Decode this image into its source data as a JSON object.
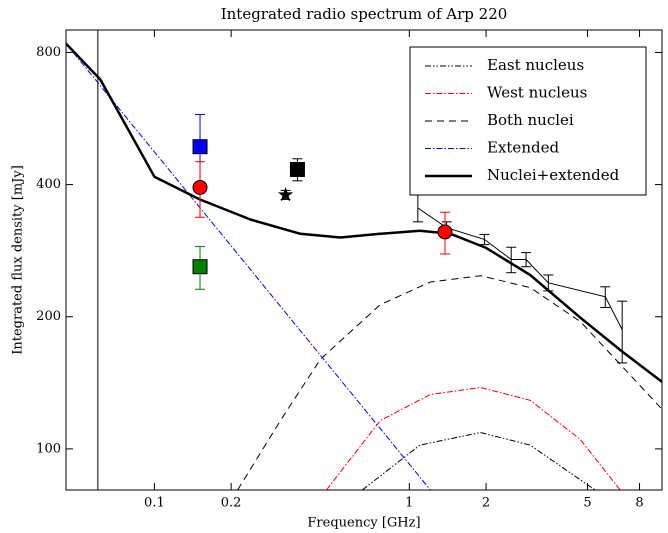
{
  "chart_data": {
    "type": "line",
    "title": "Integrated radio spectrum of Arp 220",
    "xlabel": "Frequency [GHz]",
    "ylabel": "Integrated flux density [mJy]",
    "xlog": true,
    "ylog": true,
    "xlim": [
      0.045,
      9.8
    ],
    "ylim": [
      80.6,
      900
    ],
    "xticks": [
      0.1,
      0.2,
      1,
      2,
      5,
      8
    ],
    "yticks": [
      100,
      200,
      400,
      800
    ],
    "vline_x": 0.06,
    "legend": "upper right",
    "series": [
      {
        "name": "East nucleus",
        "color": "#000000",
        "dash": "6 2 1.5 2 1.5 2",
        "width": 1,
        "x": [
          0.654,
          1.1,
          1.9,
          2.98,
          4.69,
          5.36
        ],
        "values": [
          80.6,
          102,
          109,
          102,
          85,
          80.6
        ]
      },
      {
        "name": "West nucleus",
        "color": "#ff0000",
        "dash": "6 2 1.5 2",
        "width": 1,
        "x": [
          0.473,
          0.769,
          1.21,
          1.9,
          2.98,
          4.69,
          6.72
        ],
        "values": [
          80.6,
          116,
          133,
          138,
          129,
          105,
          80.6
        ]
      },
      {
        "name": "Both nuclei",
        "color": "#000000",
        "dash": "7 5",
        "width": 1,
        "x": [
          0.212,
          0.312,
          0.448,
          0.769,
          1.21,
          1.9,
          2.98,
          4.69,
          9.82
        ],
        "values": [
          80.6,
          116,
          160,
          213,
          240,
          248,
          233,
          195,
          123
        ]
      },
      {
        "name": "Extended",
        "color": "#0000ff",
        "dash": "6 2 1.5 2",
        "width": 1,
        "x": [
          0.045,
          1.21
        ],
        "values": [
          838,
          80.6
        ]
      },
      {
        "name": "Nuclei+extended",
        "color": "#000000",
        "dash": "none",
        "width": 2.5,
        "x": [
          0.045,
          0.0614,
          0.1,
          0.151,
          0.238,
          0.374,
          0.536,
          0.769,
          1.1,
          1.45,
          2,
          2.98,
          4.69,
          6.72,
          9.82
        ],
        "values": [
          838,
          694,
          417,
          370,
          333,
          309,
          303,
          309,
          314,
          309,
          287,
          249,
          199,
          168,
          142
        ]
      }
    ],
    "points": [
      {
        "marker": "square",
        "color": "#0000ff",
        "x": 0.151,
        "value": 488,
        "err": 90
      },
      {
        "marker": "square",
        "color": "#008000",
        "x": 0.151,
        "value": 260,
        "err": 29
      },
      {
        "marker": "circle",
        "color": "#ff0000",
        "x": 0.151,
        "value": 394,
        "err": 57
      },
      {
        "marker": "square",
        "color": "#000000",
        "x": 0.364,
        "value": 433,
        "err": 25
      },
      {
        "marker": "star",
        "color": "#000000",
        "x": 0.327,
        "value": 379,
        "err": 9
      },
      {
        "marker": "circle",
        "color": "#ff0000",
        "x": 1.38,
        "value": 312,
        "err": 34
      }
    ],
    "measurements": {
      "color": "#000000",
      "x": [
        1.08,
        1.4,
        1.97,
        2.51,
        2.87,
        3.51,
        5.87,
        6.84
      ],
      "values": [
        354,
        319,
        300,
        270,
        270,
        239,
        222,
        187
      ],
      "err": [
        25,
        10,
        8,
        18,
        10,
        10,
        12,
        30
      ]
    }
  }
}
